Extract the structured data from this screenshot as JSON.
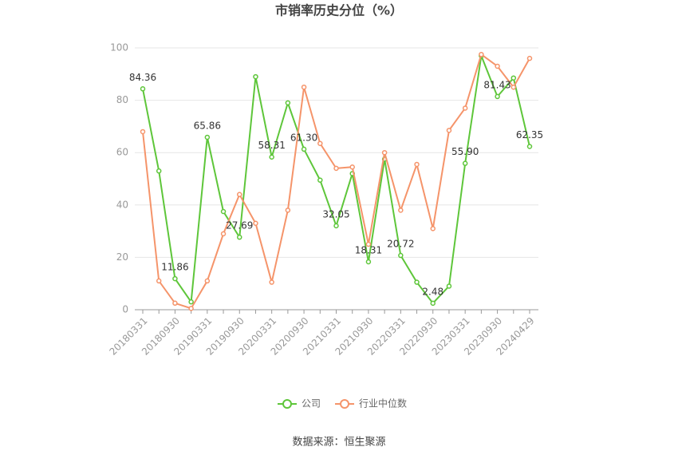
{
  "chart_data": {
    "type": "line",
    "title": "市销率历史分位（%）",
    "source": "数据来源：恒生聚源",
    "categories": [
      "20180331",
      null,
      "20180930",
      null,
      "20190331",
      null,
      "20190930",
      null,
      "20200331",
      null,
      "20200930",
      null,
      "20210331",
      null,
      "20210930",
      null,
      "20220331",
      null,
      "20220930",
      null,
      "20230331",
      null,
      "20230930",
      null,
      "20240429"
    ],
    "series": [
      {
        "name": "公司",
        "color": "#5ec63a",
        "values": [
          84.36,
          53,
          11.86,
          3,
          65.86,
          37.5,
          27.69,
          89,
          58.31,
          79,
          61.3,
          49.5,
          32.05,
          52,
          18.31,
          57.5,
          20.72,
          10.5,
          2.48,
          9,
          55.9,
          97,
          81.43,
          88.5,
          62.35
        ],
        "value_labels": [
          "84.36",
          null,
          "11.86",
          null,
          "65.86",
          null,
          "27.69",
          null,
          "58.31",
          null,
          "61.30",
          null,
          "32.05",
          null,
          "18.31",
          null,
          "20.72",
          null,
          "2.48",
          null,
          "55.90",
          null,
          "81.43",
          null,
          "62.35"
        ]
      },
      {
        "name": "行业中位数",
        "color": "#f5946a",
        "values": [
          68,
          11,
          2.5,
          0.5,
          11,
          29,
          44,
          33,
          10.5,
          38,
          85,
          63.5,
          54,
          54.5,
          25,
          60,
          38,
          55.5,
          31,
          68.5,
          77,
          97.5,
          93,
          85,
          96
        ]
      }
    ],
    "ylim": [
      0,
      100
    ],
    "yticks": [
      0,
      20,
      40,
      60,
      80,
      100
    ],
    "grid": true
  }
}
